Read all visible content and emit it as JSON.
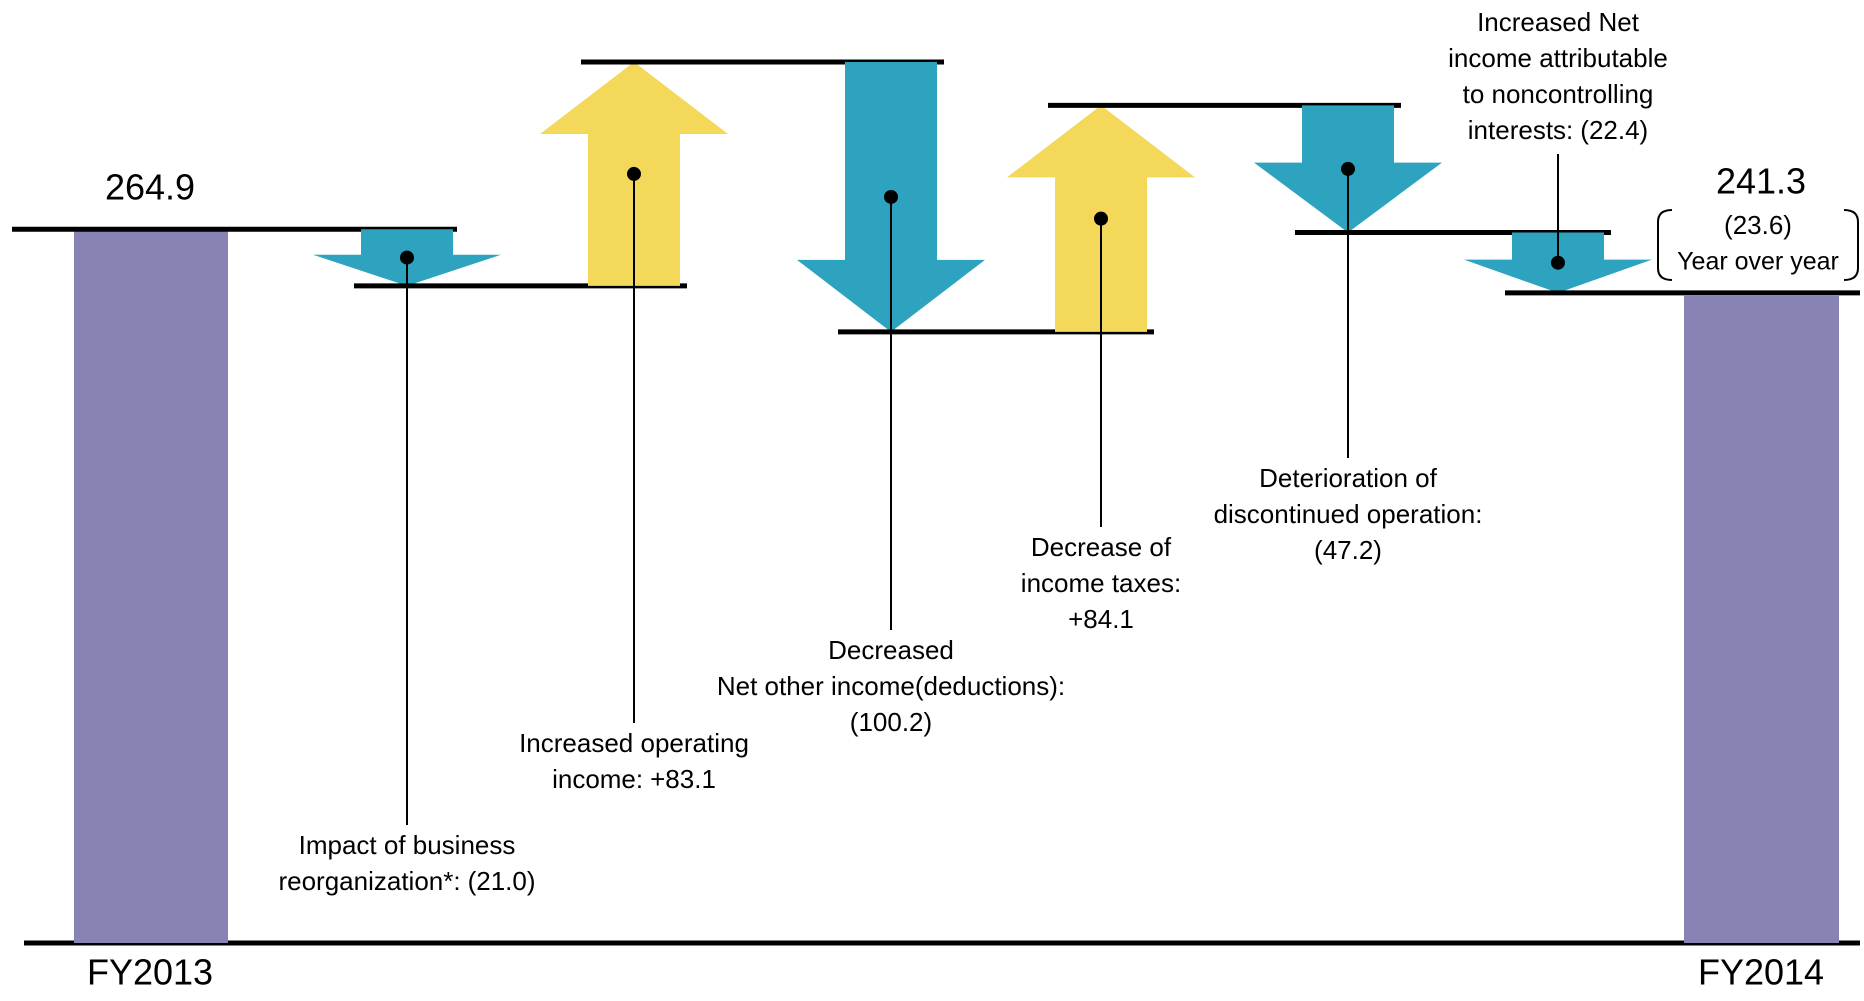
{
  "chart_data": {
    "type": "waterfall",
    "start": {
      "label": "FY2013",
      "value": 264.9
    },
    "end": {
      "label": "FY2014",
      "value": 241.3
    },
    "change": {
      "value": -23.6,
      "value_label": "(23.6)",
      "label": "Year over year"
    },
    "categories": [
      [
        "Impact of business",
        "reorganization*:"
      ],
      [
        "Increased operating",
        "income:"
      ],
      [
        "Decreased",
        "Net other income(deductions):"
      ],
      [
        "Decrease of",
        "income taxes:"
      ],
      [
        "Deterioration of",
        "discontinued  operation:"
      ],
      [
        "Increased Net",
        "income attributable",
        "to noncontrolling",
        "interests:"
      ]
    ],
    "values": [
      -21.0,
      83.1,
      -100.2,
      84.1,
      -47.2,
      -22.4
    ],
    "value_labels": [
      "(21.0)",
      "+83.1",
      "(100.2)",
      "+84.1",
      "(47.2)",
      "(22.4)"
    ],
    "colors": {
      "increase": "#f4d85a",
      "decrease": "#2ea3bf",
      "total": "#8883b5"
    },
    "ylim": [
      0,
      350
    ]
  }
}
